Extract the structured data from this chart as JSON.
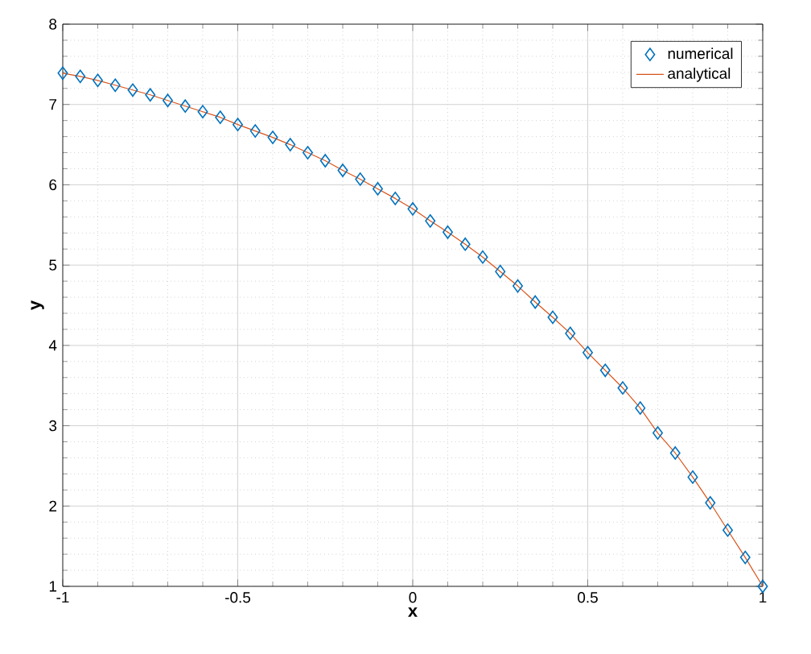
{
  "chart_data": {
    "type": "scatter",
    "xlabel": "x",
    "ylabel": "y",
    "x": [
      -1,
      -0.95,
      -0.9,
      -0.85,
      -0.8,
      -0.75,
      -0.7,
      -0.65,
      -0.6,
      -0.55,
      -0.5,
      -0.45,
      -0.4,
      -0.35,
      -0.3,
      -0.25,
      -0.2,
      -0.15,
      -0.1,
      -0.05,
      0,
      0.05,
      0.1,
      0.15,
      0.2,
      0.25,
      0.3,
      0.35,
      0.4,
      0.45,
      0.5,
      0.55,
      0.6,
      0.65,
      0.7,
      0.75,
      0.8,
      0.85,
      0.9,
      0.95,
      1
    ],
    "series": [
      {
        "name": "numerical",
        "marker": "diamond",
        "color": "#0072bd",
        "values": [
          7.39,
          7.35,
          7.3,
          7.24,
          7.18,
          7.12,
          7.05,
          6.98,
          6.91,
          6.84,
          6.75,
          6.67,
          6.59,
          6.5,
          6.4,
          6.3,
          6.18,
          6.07,
          5.95,
          5.83,
          5.7,
          5.55,
          5.41,
          5.26,
          5.1,
          4.92,
          4.74,
          4.54,
          4.35,
          4.15,
          3.91,
          3.69,
          3.47,
          3.22,
          2.91,
          2.66,
          2.36,
          2.04,
          1.7,
          1.36,
          1.0
        ]
      },
      {
        "name": "analytical",
        "type": "line",
        "marker": "none",
        "color": "#d95319",
        "values": [
          7.39,
          7.35,
          7.3,
          7.24,
          7.18,
          7.12,
          7.05,
          6.98,
          6.91,
          6.84,
          6.75,
          6.67,
          6.59,
          6.5,
          6.4,
          6.3,
          6.18,
          6.07,
          5.95,
          5.83,
          5.7,
          5.55,
          5.41,
          5.26,
          5.1,
          4.92,
          4.74,
          4.54,
          4.35,
          4.15,
          3.91,
          3.69,
          3.47,
          3.22,
          2.91,
          2.66,
          2.36,
          2.04,
          1.7,
          1.36,
          1.0
        ]
      }
    ],
    "xlim": [
      -1,
      1
    ],
    "ylim": [
      1,
      8
    ],
    "xticks": [
      -1,
      -0.5,
      0,
      0.5,
      1
    ],
    "yticks": [
      1,
      2,
      3,
      4,
      5,
      6,
      7,
      8
    ],
    "grid": true,
    "legend": "top right"
  }
}
